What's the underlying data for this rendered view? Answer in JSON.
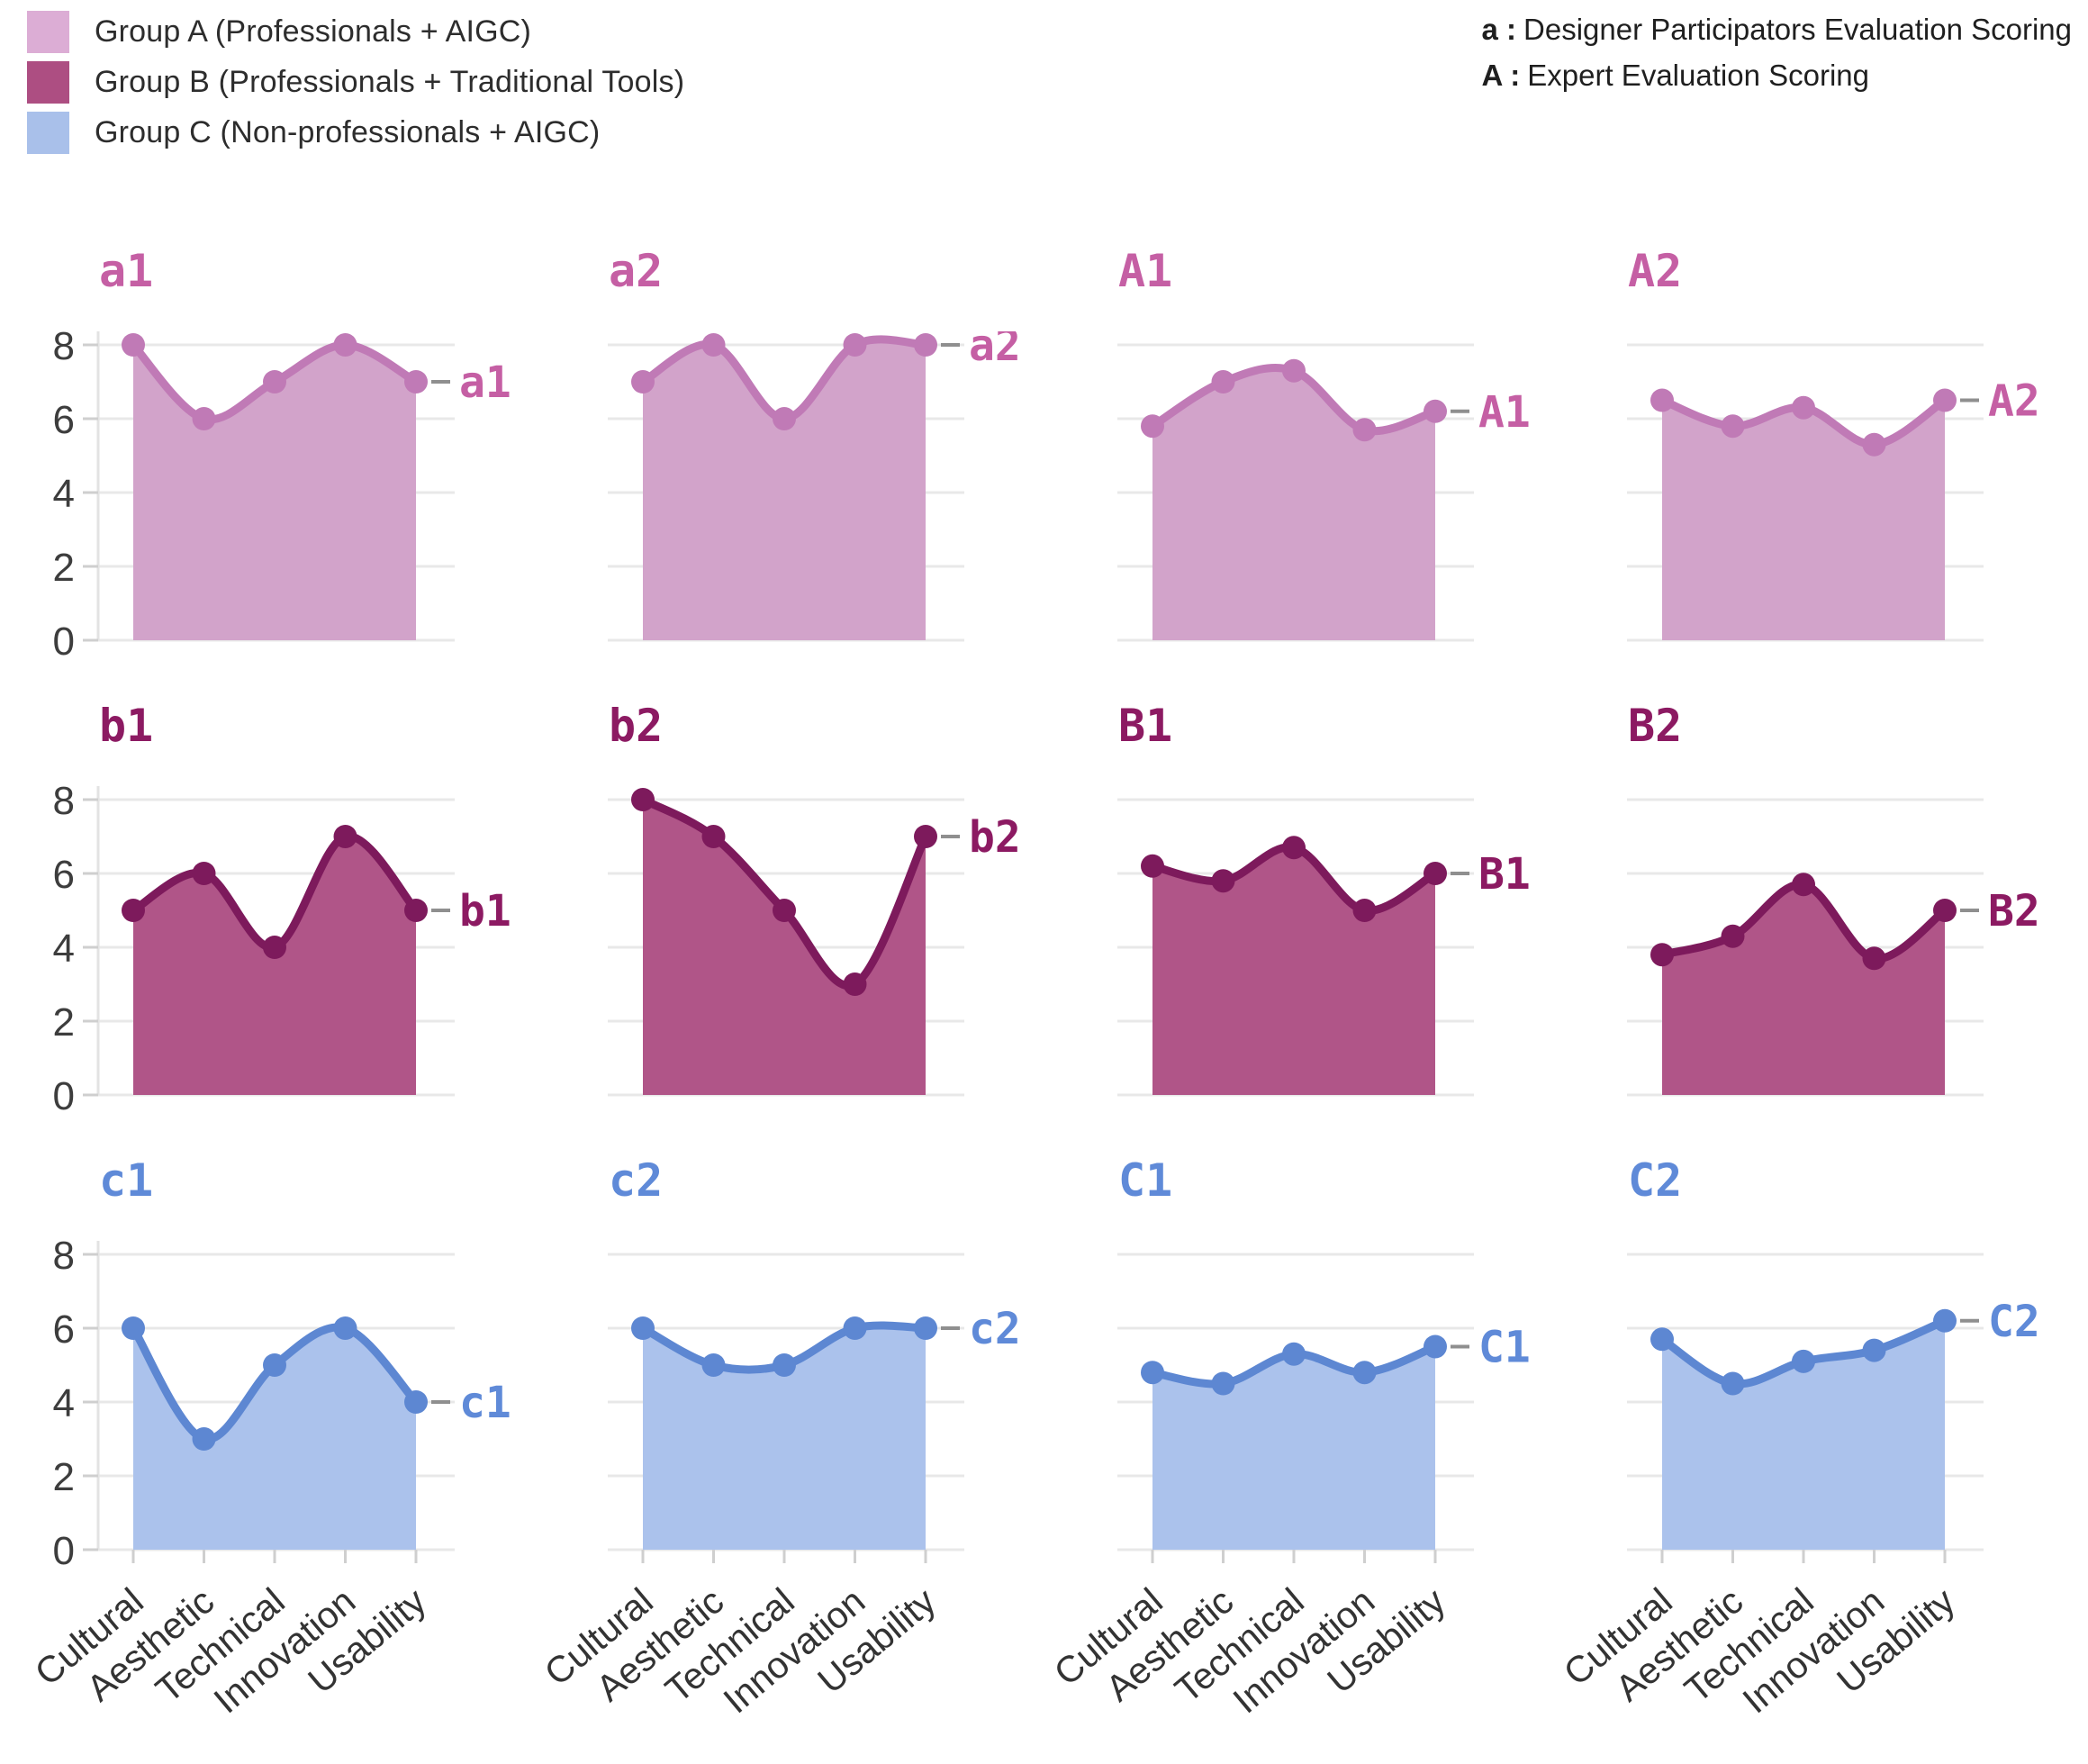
{
  "legend": {
    "items": [
      {
        "label": "Group A (Professionals + AIGC)",
        "color": "#dcadd5"
      },
      {
        "label": "Group B (Professionals + Traditional Tools)",
        "color": "#ad4e82"
      },
      {
        "label": "Group C (Non-professionals + AIGC)",
        "color": "#a9c0ea"
      }
    ]
  },
  "annotations": [
    {
      "key": "a :",
      "text": "Designer Participators Evaluation Scoring"
    },
    {
      "key": "A :",
      "text": "Expert Evaluation Scoring"
    }
  ],
  "chart_data": {
    "type": "area",
    "categories": [
      "Cultural",
      "Aesthetic",
      "Technical",
      "Innovation",
      "Usability"
    ],
    "ylim": [
      0,
      8
    ],
    "yticks": [
      0,
      2,
      4,
      6,
      8
    ],
    "grid": true,
    "legend_position": "top-left",
    "groups": {
      "A": {
        "line": "#c07ab6",
        "fill": "#d2a3ca",
        "label": "#c55fa4"
      },
      "B": {
        "line": "#7d1a5c",
        "fill": "#b05588",
        "label": "#8c1a62"
      },
      "C": {
        "line": "#5d87d2",
        "fill": "#abc2ec",
        "label": "#5f8ad8"
      }
    },
    "charts": [
      {
        "id": "a1",
        "group": "A",
        "values": [
          8,
          6,
          7,
          8,
          7
        ]
      },
      {
        "id": "a2",
        "group": "A",
        "values": [
          7,
          8,
          6,
          8,
          8
        ]
      },
      {
        "id": "A1",
        "group": "A",
        "values": [
          5.8,
          7,
          7.3,
          5.7,
          6.2
        ]
      },
      {
        "id": "A2",
        "group": "A",
        "values": [
          6.5,
          5.8,
          6.3,
          5.3,
          6.5
        ]
      },
      {
        "id": "b1",
        "group": "B",
        "values": [
          5,
          6,
          4,
          7,
          5
        ]
      },
      {
        "id": "b2",
        "group": "B",
        "values": [
          8,
          7,
          5,
          3,
          7
        ]
      },
      {
        "id": "B1",
        "group": "B",
        "values": [
          6.2,
          5.8,
          6.7,
          5,
          6
        ]
      },
      {
        "id": "B2",
        "group": "B",
        "values": [
          3.8,
          4.3,
          5.7,
          3.7,
          5
        ]
      },
      {
        "id": "c1",
        "group": "C",
        "values": [
          6,
          3,
          5,
          6,
          4
        ]
      },
      {
        "id": "c2",
        "group": "C",
        "values": [
          6,
          5,
          5,
          6,
          6
        ]
      },
      {
        "id": "C1",
        "group": "C",
        "values": [
          4.8,
          4.5,
          5.3,
          4.8,
          5.5
        ]
      },
      {
        "id": "C2",
        "group": "C",
        "values": [
          5.7,
          4.5,
          5.1,
          5.4,
          6.2
        ]
      }
    ]
  }
}
